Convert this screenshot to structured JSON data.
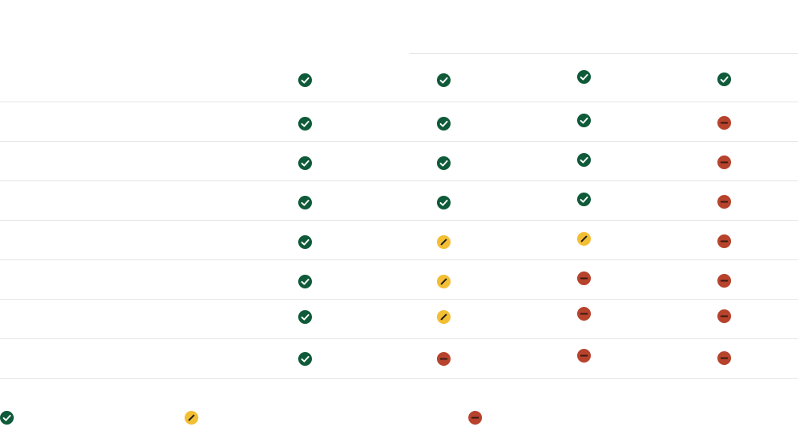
{
  "colors": {
    "full": "#0f5a39",
    "partial": "#f2be34",
    "none": "#b7432d",
    "divider": "#e6e6e6"
  },
  "icon_names": {
    "full": "check-circle-icon",
    "partial": "partial-slash-icon",
    "none": "minus-circle-icon"
  },
  "matrix": [
    [
      "full",
      "full",
      "full",
      "full"
    ],
    [
      "full",
      "full",
      "full",
      "none"
    ],
    [
      "full",
      "full",
      "full",
      "none"
    ],
    [
      "full",
      "full",
      "full",
      "none"
    ],
    [
      "full",
      "partial",
      "partial",
      "none"
    ],
    [
      "full",
      "partial",
      "none",
      "none"
    ],
    [
      "full",
      "partial",
      "none",
      "none"
    ],
    [
      "full",
      "none",
      "none",
      "none"
    ]
  ],
  "legend": [
    "full",
    "partial",
    "none"
  ]
}
